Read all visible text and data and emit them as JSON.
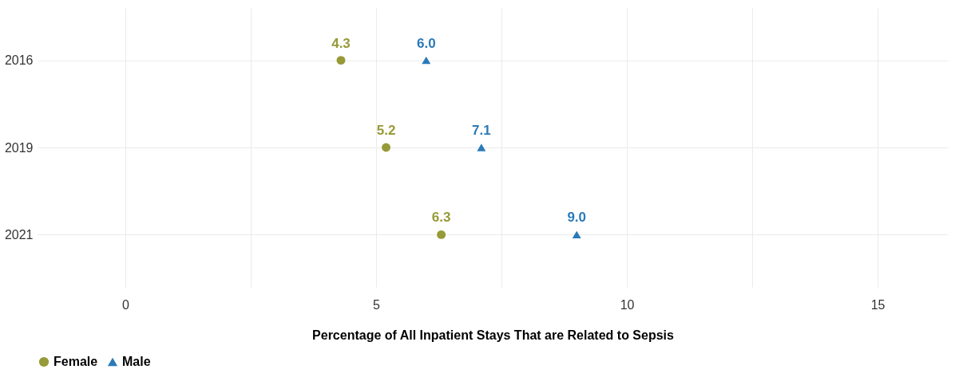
{
  "chart_data": {
    "type": "scatter",
    "orientation": "horizontal",
    "xlabel": "Percentage of All Inpatient Stays That are Related to Sepsis",
    "categories": [
      "2016",
      "2019",
      "2021"
    ],
    "series": [
      {
        "name": "Female",
        "color": "#969a37",
        "marker": "circle",
        "values": [
          4.3,
          5.2,
          6.3
        ],
        "value_labels": [
          "4.3",
          "5.2",
          "6.3"
        ]
      },
      {
        "name": "Male",
        "color": "#2a7ab9",
        "marker": "triangle",
        "values": [
          6.0,
          7.1,
          9.0
        ],
        "value_labels": [
          "6.0",
          "7.1",
          "9.0"
        ]
      }
    ],
    "xlim": [
      -1.75,
      16.4
    ],
    "xticks": [
      0,
      {
        "value": 2.5,
        "label": null
      },
      5,
      {
        "value": 7.5,
        "label": null
      },
      10,
      {
        "value": 12.5,
        "label": null
      },
      15
    ],
    "grid": true,
    "legend": "bottom"
  }
}
